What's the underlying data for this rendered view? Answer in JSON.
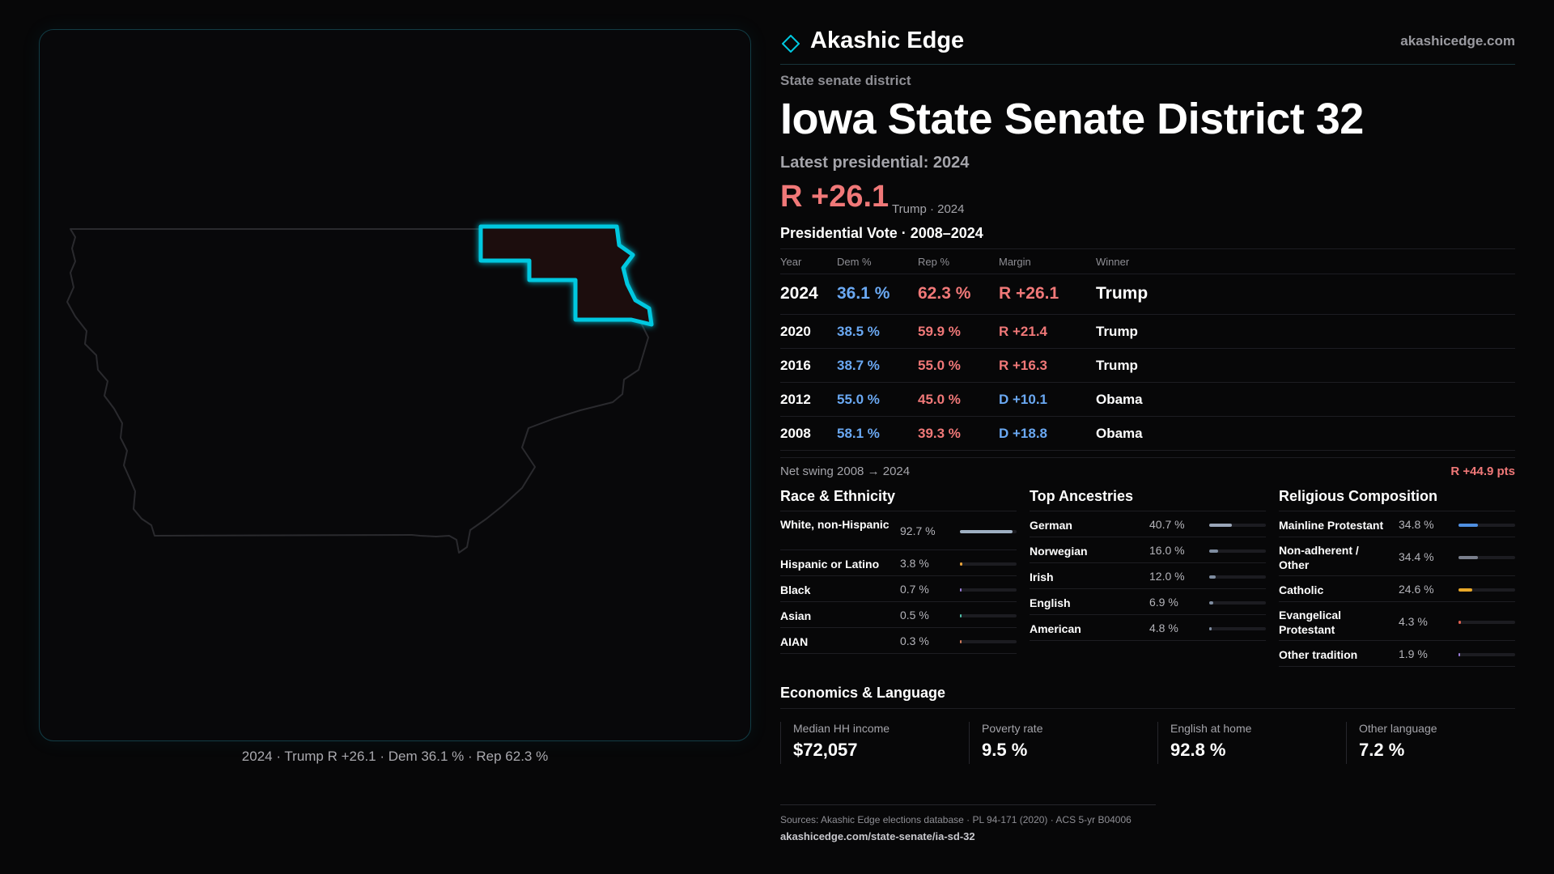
{
  "brand": {
    "name": "Akashic Edge",
    "url": "akashicedge.com",
    "accent": "#00c8e0"
  },
  "header": {
    "kicker": "State senate district",
    "title": "Iowa State Senate District 32",
    "latest_label": "Latest presidential: 2024",
    "big_margin": "R +26.1",
    "big_margin_sub": "Trump · 2024"
  },
  "map": {
    "state": "Iowa",
    "highlight_fill": "#1c0f10",
    "highlight_stroke": "#00c8e0",
    "caption": "2024 · Trump R +26.1 · Dem 36.1 % · Rep 62.3 %"
  },
  "vote_table": {
    "title": "Presidential Vote · 2008–2024",
    "headers": [
      "Year",
      "Dem %",
      "Rep %",
      "Margin",
      "Winner"
    ],
    "rows": [
      {
        "year": "2024",
        "dem": "36.1 %",
        "rep": "62.3 %",
        "margin": "R +26.1",
        "party": "R",
        "winner": "Trump"
      },
      {
        "year": "2020",
        "dem": "38.5 %",
        "rep": "59.9 %",
        "margin": "R +21.4",
        "party": "R",
        "winner": "Trump"
      },
      {
        "year": "2016",
        "dem": "38.7 %",
        "rep": "55.0 %",
        "margin": "R +16.3",
        "party": "R",
        "winner": "Trump"
      },
      {
        "year": "2012",
        "dem": "55.0 %",
        "rep": "45.0 %",
        "margin": "D +10.1",
        "party": "D",
        "winner": "Obama"
      },
      {
        "year": "2008",
        "dem": "58.1 %",
        "rep": "39.3 %",
        "margin": "D +18.8",
        "party": "D",
        "winner": "Obama"
      }
    ],
    "swing_label": "Net swing 2008 → 2024",
    "swing_value": "R +44.9 pts"
  },
  "race": {
    "title": "Race & Ethnicity",
    "items": [
      {
        "label": "White, non-Hispanic",
        "value": "92.7 %",
        "pct": 92.7,
        "color": "#9fb0c2"
      },
      {
        "label": "Hispanic or Latino",
        "value": "3.8 %",
        "pct": 3.8,
        "color": "#e8a33a"
      },
      {
        "label": "Black",
        "value": "0.7 %",
        "pct": 0.7,
        "color": "#9a7cd8"
      },
      {
        "label": "Asian",
        "value": "0.5 %",
        "pct": 0.5,
        "color": "#4fc0a8"
      },
      {
        "label": "AIAN",
        "value": "0.3 %",
        "pct": 0.3,
        "color": "#d07a5a"
      }
    ]
  },
  "ancestry": {
    "title": "Top Ancestries",
    "items": [
      {
        "label": "German",
        "value": "40.7 %",
        "pct": 40.7,
        "color": "#9aa6b8"
      },
      {
        "label": "Norwegian",
        "value": "16.0 %",
        "pct": 16.0,
        "color": "#7e8ca0"
      },
      {
        "label": "Irish",
        "value": "12.0 %",
        "pct": 12.0,
        "color": "#7e8ca0"
      },
      {
        "label": "English",
        "value": "6.9 %",
        "pct": 6.9,
        "color": "#7e8ca0"
      },
      {
        "label": "American",
        "value": "4.8 %",
        "pct": 4.8,
        "color": "#7e8ca0"
      }
    ]
  },
  "religion": {
    "title": "Religious Composition",
    "items": [
      {
        "label": "Mainline Protestant",
        "value": "34.8 %",
        "pct": 34.8,
        "color": "#4f8fe0"
      },
      {
        "label": "Non-adherent / Other",
        "value": "34.4 %",
        "pct": 34.4,
        "color": "#7a7f8c"
      },
      {
        "label": "Catholic",
        "value": "24.6 %",
        "pct": 24.6,
        "color": "#e8a829"
      },
      {
        "label": "Evangelical Protestant",
        "value": "4.3 %",
        "pct": 4.3,
        "color": "#e06050"
      },
      {
        "label": "Other tradition",
        "value": "1.9 %",
        "pct": 1.9,
        "color": "#9a7cd8"
      }
    ]
  },
  "economics": {
    "title": "Economics & Language",
    "cards": [
      {
        "label": "Median HH income",
        "value": "$72,057"
      },
      {
        "label": "Poverty rate",
        "value": "9.5 %"
      },
      {
        "label": "English at home",
        "value": "92.8 %"
      },
      {
        "label": "Other language",
        "value": "7.2 %"
      }
    ]
  },
  "footer": {
    "sources": "Sources: Akashic Edge elections database · PL 94-171 (2020) · ACS 5-yr B04006",
    "url": "akashicedge.com/state-senate/ia-sd-32"
  }
}
